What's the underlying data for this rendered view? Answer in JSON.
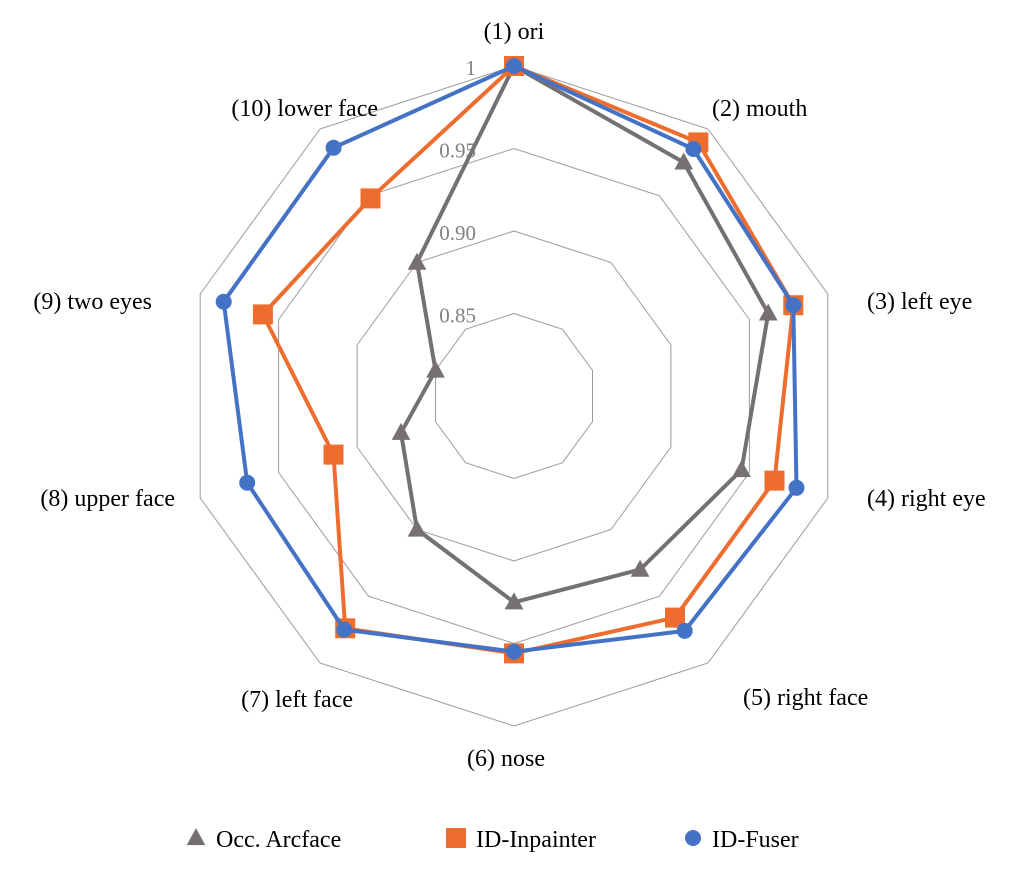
{
  "chart_data": {
    "type": "radar",
    "categories": [
      "(1) ori",
      "(2) mouth",
      "(3) left eye",
      "(4) right eye",
      "(5) right face",
      "(6) nose",
      "(7) left face",
      "(8) upper face",
      "(9) two eyes",
      "(10) lower face"
    ],
    "rlim": [
      0.8,
      1
    ],
    "ticks": [
      {
        "value": 0.85,
        "label": "0.85"
      },
      {
        "value": 0.9,
        "label": "0.90"
      },
      {
        "value": 0.95,
        "label": "0.95"
      },
      {
        "value": 1,
        "label": "1"
      }
    ],
    "grid": true,
    "legend_position": "bottom",
    "series": [
      {
        "name": "Occ. Arcface",
        "marker": "triangle",
        "color": "#767171",
        "values": [
          1.0,
          0.975,
          0.962,
          0.945,
          0.93,
          0.925,
          0.9,
          0.872,
          0.85,
          0.9
        ]
      },
      {
        "name": "ID-Inpainter",
        "marker": "square",
        "color": "#ED6D2F",
        "values": [
          1.0,
          0.99,
          0.978,
          0.966,
          0.966,
          0.956,
          0.974,
          0.915,
          0.96,
          0.948
        ]
      },
      {
        "name": "ID-Fuser",
        "marker": "circle",
        "color": "#4472C4",
        "values": [
          1.0,
          0.985,
          0.978,
          0.98,
          0.976,
          0.955,
          0.975,
          0.97,
          0.985,
          0.986
        ]
      }
    ]
  }
}
